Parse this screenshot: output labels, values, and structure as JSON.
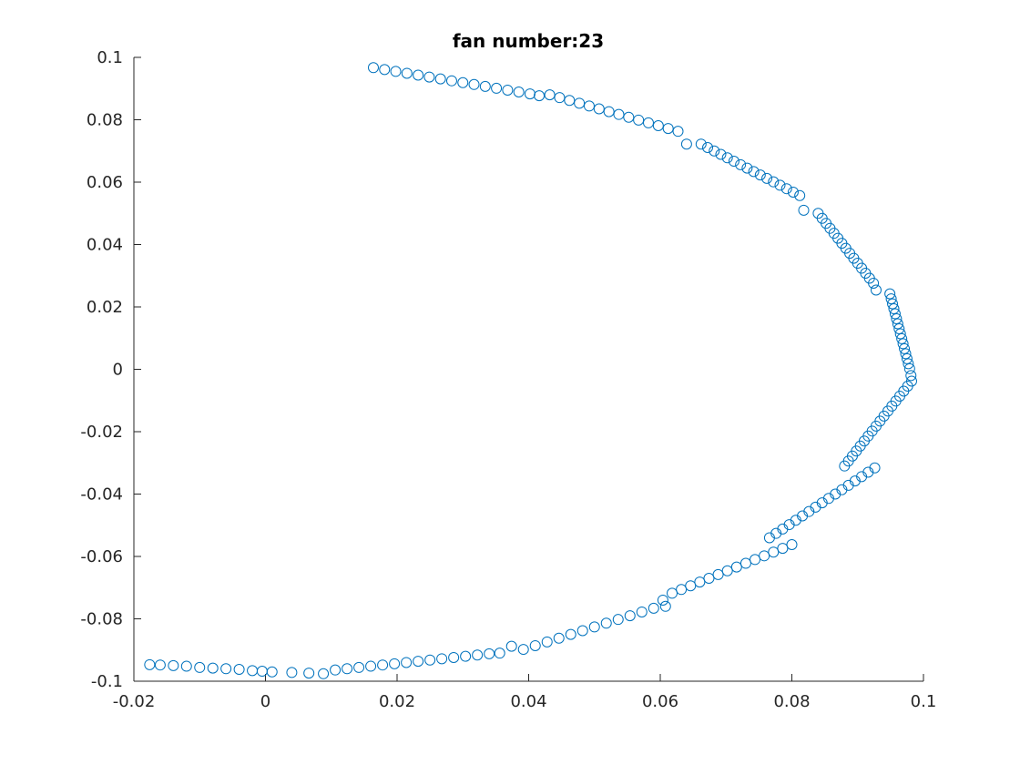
{
  "chart_data": {
    "type": "scatter",
    "title": "fan number:23",
    "xlabel": "",
    "ylabel": "",
    "xlim": [
      -0.02,
      0.1
    ],
    "ylim": [
      -0.1,
      0.1
    ],
    "xticks": [
      -0.02,
      0,
      0.02,
      0.04,
      0.06,
      0.08,
      0.1
    ],
    "xtick_labels": [
      "-0.02",
      "0",
      "0.02",
      "0.04",
      "0.06",
      "0.08",
      "0.1"
    ],
    "yticks": [
      -0.1,
      -0.08,
      -0.06,
      -0.04,
      -0.02,
      0,
      0.02,
      0.04,
      0.06,
      0.08,
      0.1
    ],
    "ytick_labels": [
      "-0.1",
      "-0.08",
      "-0.06",
      "-0.04",
      "-0.02",
      "0",
      "0.02",
      "0.04",
      "0.06",
      "0.08",
      "0.1"
    ],
    "grid": false,
    "marker": "circle-open",
    "marker_color": "#0072BD",
    "series": [
      {
        "points": [
          [
            0.0164,
            0.0967
          ],
          [
            0.0181,
            0.0961
          ],
          [
            0.0198,
            0.0955
          ],
          [
            0.0215,
            0.0949
          ],
          [
            0.0232,
            0.0943
          ],
          [
            0.0249,
            0.0937
          ],
          [
            0.0266,
            0.0931
          ],
          [
            0.0283,
            0.0925
          ],
          [
            0.03,
            0.0919
          ],
          [
            0.0317,
            0.0913
          ],
          [
            0.0334,
            0.0907
          ],
          [
            0.0351,
            0.0901
          ],
          [
            0.0368,
            0.0895
          ],
          [
            0.0385,
            0.0889
          ],
          [
            0.0402,
            0.0883
          ],
          [
            0.0416,
            0.0877
          ],
          [
            0.0432,
            0.088
          ],
          [
            0.0447,
            0.0871
          ],
          [
            0.0462,
            0.0862
          ],
          [
            0.0477,
            0.0853
          ],
          [
            0.0492,
            0.0844
          ],
          [
            0.0507,
            0.0835
          ],
          [
            0.0522,
            0.0826
          ],
          [
            0.0537,
            0.0817
          ],
          [
            0.0552,
            0.0808
          ],
          [
            0.0567,
            0.0799
          ],
          [
            0.0582,
            0.079
          ],
          [
            0.0597,
            0.0781
          ],
          [
            0.0612,
            0.0772
          ],
          [
            0.0627,
            0.0763
          ],
          [
            0.064,
            0.0722
          ],
          [
            0.0662,
            0.0722
          ],
          [
            0.0672,
            0.0711
          ],
          [
            0.0682,
            0.07
          ],
          [
            0.0692,
            0.0689
          ],
          [
            0.0702,
            0.0678
          ],
          [
            0.0712,
            0.0667
          ],
          [
            0.0722,
            0.0656
          ],
          [
            0.0732,
            0.0645
          ],
          [
            0.0742,
            0.0634
          ],
          [
            0.0752,
            0.0623
          ],
          [
            0.0762,
            0.0612
          ],
          [
            0.0772,
            0.0601
          ],
          [
            0.0782,
            0.059
          ],
          [
            0.0792,
            0.0579
          ],
          [
            0.0802,
            0.0568
          ],
          [
            0.0812,
            0.0557
          ],
          [
            0.0818,
            0.051
          ],
          [
            0.084,
            0.05
          ],
          [
            0.0846,
            0.0484
          ],
          [
            0.0852,
            0.0468
          ],
          [
            0.0858,
            0.0452
          ],
          [
            0.0864,
            0.0436
          ],
          [
            0.087,
            0.042
          ],
          [
            0.0876,
            0.0404
          ],
          [
            0.0882,
            0.0388
          ],
          [
            0.0888,
            0.0372
          ],
          [
            0.0894,
            0.0356
          ],
          [
            0.09,
            0.034
          ],
          [
            0.0906,
            0.0324
          ],
          [
            0.0912,
            0.0308
          ],
          [
            0.0918,
            0.0292
          ],
          [
            0.0924,
            0.0276
          ],
          [
            0.0928,
            0.0254
          ],
          [
            0.0949,
            0.0242
          ],
          [
            0.0951,
            0.0226
          ],
          [
            0.0953,
            0.021
          ],
          [
            0.0955,
            0.0194
          ],
          [
            0.0957,
            0.0178
          ],
          [
            0.0959,
            0.0162
          ],
          [
            0.0961,
            0.0146
          ],
          [
            0.0963,
            0.013
          ],
          [
            0.0965,
            0.0114
          ],
          [
            0.0967,
            0.0098
          ],
          [
            0.0969,
            0.0082
          ],
          [
            0.0971,
            0.0066
          ],
          [
            0.0973,
            0.005
          ],
          [
            0.0975,
            0.0034
          ],
          [
            0.0977,
            0.0018
          ],
          [
            0.0979,
            0.0002
          ],
          [
            0.0981,
            -0.002
          ],
          [
            0.0982,
            -0.0038
          ],
          [
            0.0976,
            -0.0054
          ],
          [
            0.097,
            -0.007
          ],
          [
            0.0964,
            -0.0086
          ],
          [
            0.0958,
            -0.0102
          ],
          [
            0.0952,
            -0.0118
          ],
          [
            0.0946,
            -0.0134
          ],
          [
            0.094,
            -0.015
          ],
          [
            0.0934,
            -0.0166
          ],
          [
            0.0928,
            -0.0182
          ],
          [
            0.0922,
            -0.0198
          ],
          [
            0.0916,
            -0.0214
          ],
          [
            0.091,
            -0.023
          ],
          [
            0.0904,
            -0.0246
          ],
          [
            0.0898,
            -0.0262
          ],
          [
            0.0892,
            -0.0278
          ],
          [
            0.0886,
            -0.0294
          ],
          [
            0.088,
            -0.031
          ],
          [
            0.0926,
            -0.0316
          ],
          [
            0.0916,
            -0.033
          ],
          [
            0.0906,
            -0.0344
          ],
          [
            0.0896,
            -0.0358
          ],
          [
            0.0886,
            -0.0372
          ],
          [
            0.0876,
            -0.0386
          ],
          [
            0.0866,
            -0.04
          ],
          [
            0.0856,
            -0.0414
          ],
          [
            0.0846,
            -0.0428
          ],
          [
            0.0836,
            -0.0442
          ],
          [
            0.0826,
            -0.0456
          ],
          [
            0.0816,
            -0.047
          ],
          [
            0.0806,
            -0.0484
          ],
          [
            0.0796,
            -0.0498
          ],
          [
            0.0786,
            -0.0512
          ],
          [
            0.0776,
            -0.0526
          ],
          [
            0.0766,
            -0.054
          ],
          [
            0.08,
            -0.0562
          ],
          [
            0.0786,
            -0.0574
          ],
          [
            0.0772,
            -0.0586
          ],
          [
            0.0758,
            -0.0598
          ],
          [
            0.0744,
            -0.061
          ],
          [
            0.073,
            -0.0622
          ],
          [
            0.0716,
            -0.0634
          ],
          [
            0.0702,
            -0.0646
          ],
          [
            0.0688,
            -0.0658
          ],
          [
            0.0674,
            -0.067
          ],
          [
            0.066,
            -0.0682
          ],
          [
            0.0646,
            -0.0694
          ],
          [
            0.0632,
            -0.0706
          ],
          [
            0.0618,
            -0.0718
          ],
          [
            0.0604,
            -0.074
          ],
          [
            0.0608,
            -0.076
          ],
          [
            0.059,
            -0.0766
          ],
          [
            0.0572,
            -0.0778
          ],
          [
            0.0554,
            -0.079
          ],
          [
            0.0536,
            -0.0802
          ],
          [
            0.0518,
            -0.0814
          ],
          [
            0.05,
            -0.0826
          ],
          [
            0.0482,
            -0.0838
          ],
          [
            0.0464,
            -0.085
          ],
          [
            0.0446,
            -0.0862
          ],
          [
            0.0428,
            -0.0874
          ],
          [
            0.041,
            -0.0886
          ],
          [
            0.0392,
            -0.0898
          ],
          [
            0.0374,
            -0.0888
          ],
          [
            0.0356,
            -0.091
          ],
          [
            0.034,
            -0.0912
          ],
          [
            0.0322,
            -0.0916
          ],
          [
            0.0304,
            -0.092
          ],
          [
            0.0286,
            -0.0924
          ],
          [
            0.0268,
            -0.0928
          ],
          [
            0.025,
            -0.0932
          ],
          [
            0.0232,
            -0.0936
          ],
          [
            0.0214,
            -0.094
          ],
          [
            0.0196,
            -0.0944
          ],
          [
            0.0178,
            -0.0948
          ],
          [
            0.016,
            -0.0952
          ],
          [
            0.0142,
            -0.0956
          ],
          [
            0.0124,
            -0.096
          ],
          [
            0.0106,
            -0.0964
          ],
          [
            0.0088,
            -0.0976
          ],
          [
            0.0066,
            -0.0974
          ],
          [
            0.004,
            -0.0972
          ],
          [
            0.001,
            -0.097
          ],
          [
            -0.0005,
            -0.0968
          ],
          [
            -0.002,
            -0.0966
          ],
          [
            -0.004,
            -0.0962
          ],
          [
            -0.006,
            -0.096
          ],
          [
            -0.008,
            -0.0958
          ],
          [
            -0.01,
            -0.0956
          ],
          [
            -0.012,
            -0.0952
          ],
          [
            -0.014,
            -0.095
          ],
          [
            -0.016,
            -0.0948
          ],
          [
            -0.0176,
            -0.0947
          ]
        ]
      }
    ]
  }
}
